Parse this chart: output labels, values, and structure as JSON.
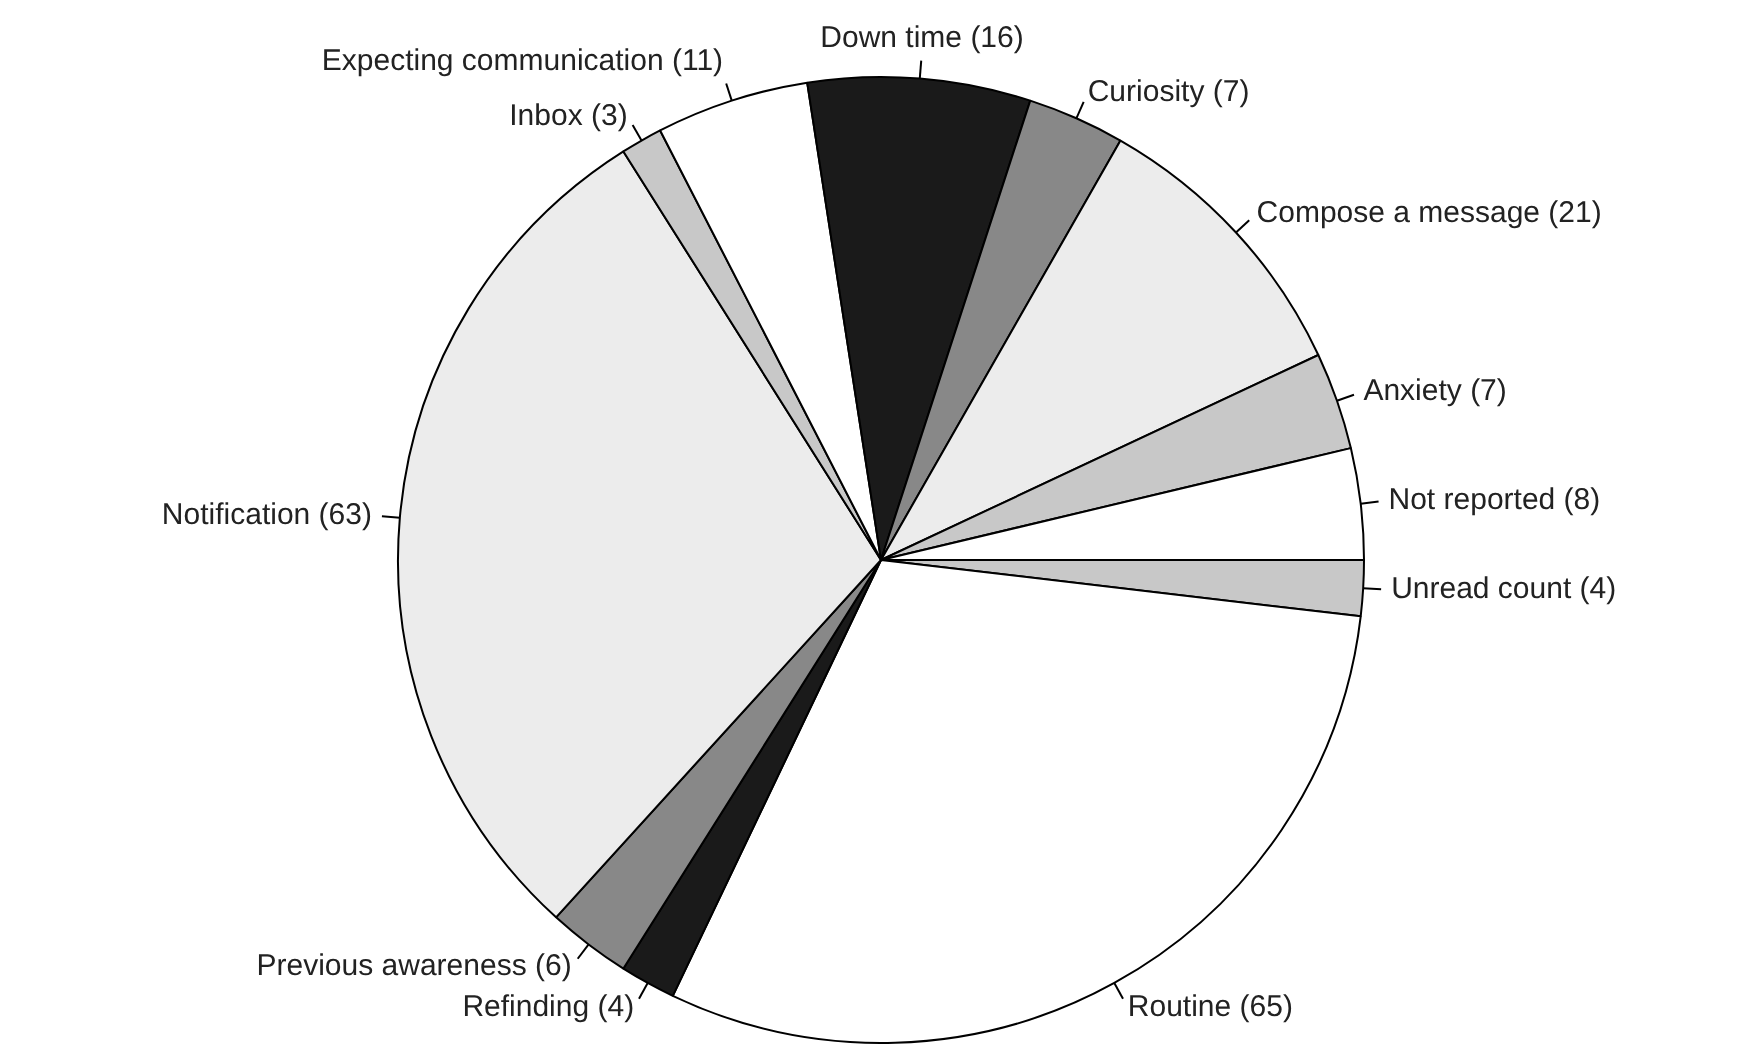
{
  "chart_data": {
    "type": "pie",
    "legend": false,
    "value_labels": [
      "(4)",
      "(65)",
      "(4)",
      "(6)",
      "(63)",
      "(3)",
      "(11)",
      "(16)",
      "(7)",
      "(21)",
      "(7)",
      "(8)"
    ],
    "categories": [
      "Unread count",
      "Routine",
      "Refinding",
      "Previous awareness",
      "Notification",
      "Inbox",
      "Expecting communication",
      "Down time",
      "Curiosity",
      "Compose a message",
      "Anxiety",
      "Not reported"
    ],
    "values": [
      4,
      65,
      4,
      6,
      63,
      3,
      11,
      16,
      7,
      21,
      7,
      8
    ],
    "colors": [
      "#c8c8c8",
      "#ffffff",
      "#1a1a1a",
      "#888888",
      "#ececec",
      "#c8c8c8",
      "#ffffff",
      "#1a1a1a",
      "#888888",
      "#ececec",
      "#c8c8c8",
      "#ffffff"
    ]
  }
}
